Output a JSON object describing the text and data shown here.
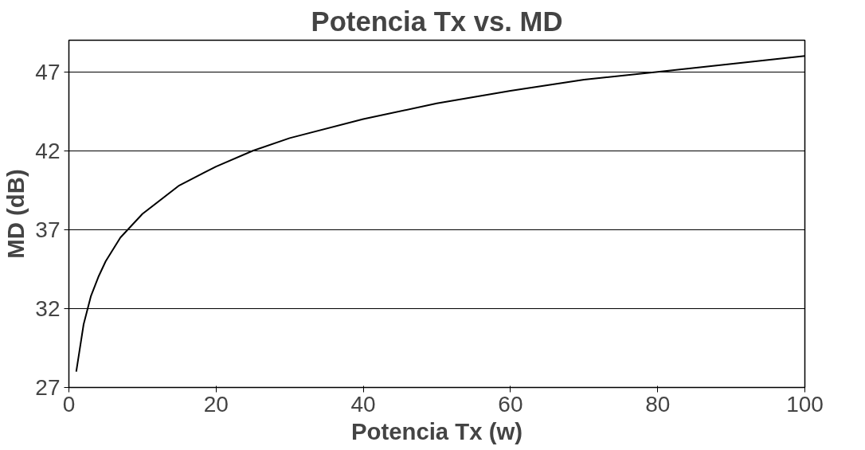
{
  "chart_data": {
    "type": "line",
    "title": "Potencia Tx vs. MD",
    "xlabel": "Potencia Tx (w)",
    "ylabel": "MD (dB)",
    "x": [
      1,
      2,
      3,
      4,
      5,
      7,
      10,
      15,
      20,
      25,
      30,
      40,
      50,
      60,
      70,
      80,
      90,
      100
    ],
    "series": [
      {
        "color": "#000000",
        "values": [
          28,
          31,
          32.8,
          34,
          35,
          36.5,
          38,
          39.8,
          41,
          42,
          42.8,
          44,
          45,
          45.8,
          46.5,
          47,
          47.5,
          48
        ]
      }
    ],
    "xlim": [
      0,
      100
    ],
    "xticks": [
      0,
      20,
      40,
      60,
      80,
      100
    ],
    "ylim": [
      27,
      49
    ],
    "yticks": [
      27,
      32,
      37,
      42,
      47
    ],
    "grid": "y",
    "marker": "none",
    "line_style": "solid"
  }
}
